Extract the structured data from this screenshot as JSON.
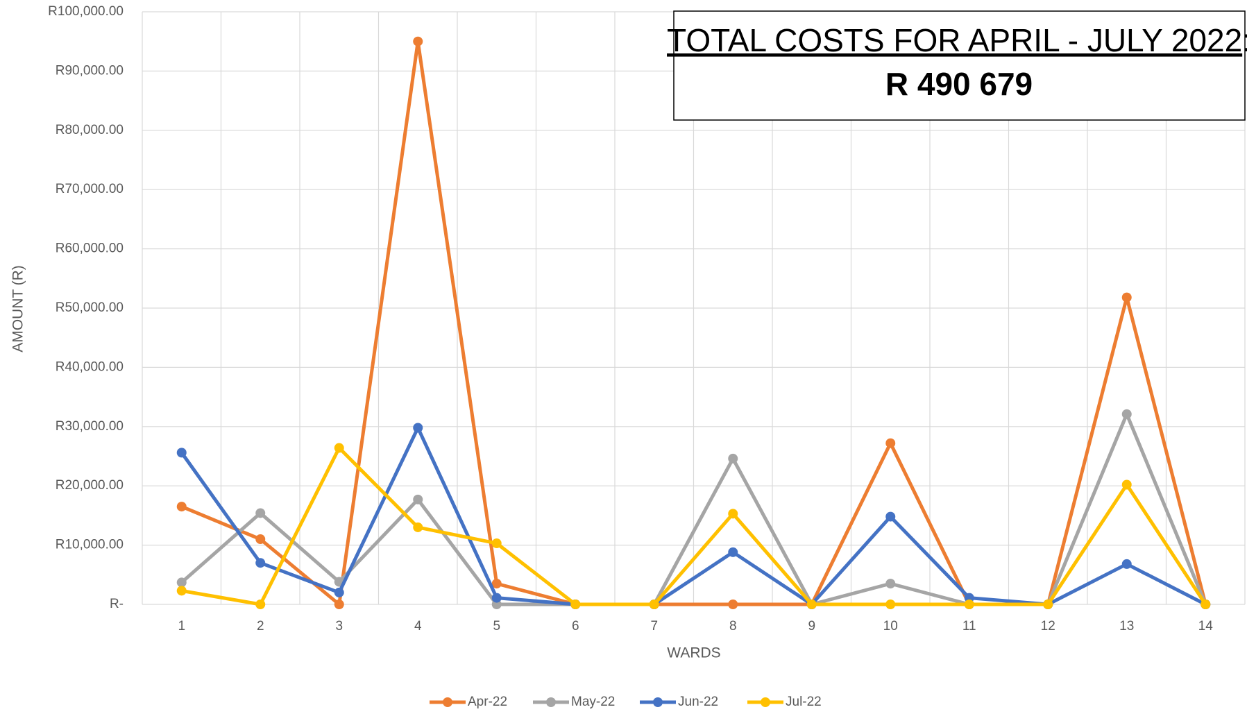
{
  "chart_data": {
    "type": "line",
    "annotation": [
      "TOTAL COSTS FOR APRIL - JULY 2022",
      ":",
      "R 490 679"
    ],
    "xlabel": "WARDS",
    "ylabel": "AMOUNT (R)",
    "categories": [
      "1",
      "2",
      "3",
      "4",
      "5",
      "6",
      "7",
      "8",
      "9",
      "10",
      "11",
      "12",
      "13",
      "14"
    ],
    "series": [
      {
        "name": "Apr-22",
        "color": "#ed7d31",
        "values": [
          16500,
          11000,
          0,
          95000,
          3500,
          0,
          0,
          0,
          0,
          27200,
          0,
          0,
          51800,
          0
        ]
      },
      {
        "name": "May-22",
        "color": "#a5a5a5",
        "values": [
          3700,
          15400,
          3800,
          17700,
          0,
          0,
          0,
          24600,
          0,
          3500,
          0,
          0,
          32100,
          0
        ]
      },
      {
        "name": "Jun-22",
        "color": "#4472c4",
        "values": [
          25600,
          7000,
          2000,
          29800,
          1100,
          0,
          0,
          8800,
          0,
          14800,
          1100,
          0,
          6800,
          0
        ]
      },
      {
        "name": "Jul-22",
        "color": "#ffc000",
        "values": [
          2300,
          0,
          26400,
          13000,
          10300,
          0,
          0,
          15300,
          0,
          0,
          0,
          0,
          20200,
          0
        ]
      }
    ],
    "ylim": [
      0,
      100000
    ],
    "yticks": [
      {
        "value": 0,
        "label": "R-"
      },
      {
        "value": 10000,
        "label": "R10,000.00"
      },
      {
        "value": 20000,
        "label": "R20,000.00"
      },
      {
        "value": 30000,
        "label": "R30,000.00"
      },
      {
        "value": 40000,
        "label": "R40,000.00"
      },
      {
        "value": 50000,
        "label": "R50,000.00"
      },
      {
        "value": 60000,
        "label": "R60,000.00"
      },
      {
        "value": 70000,
        "label": "R70,000.00"
      },
      {
        "value": 80000,
        "label": "R80,000.00"
      },
      {
        "value": 90000,
        "label": "R90,000.00"
      },
      {
        "value": 100000,
        "label": "R100,000.00"
      }
    ],
    "grid": true,
    "legend": "bottom"
  }
}
